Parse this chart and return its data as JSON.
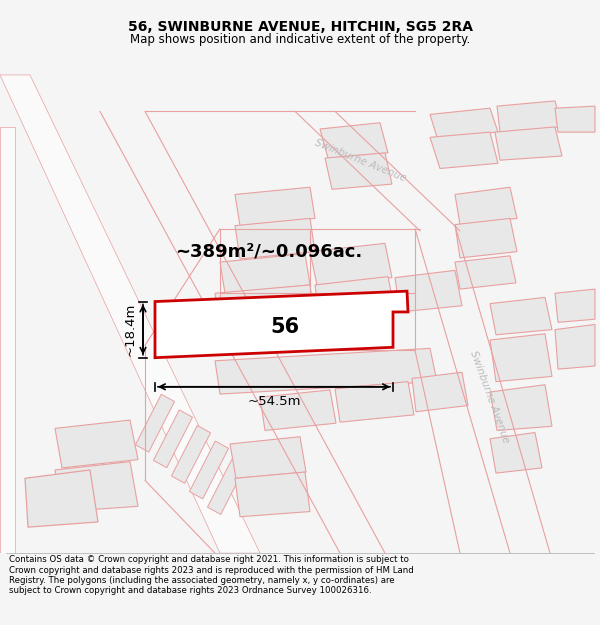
{
  "title_line1": "56, SWINBURNE AVENUE, HITCHIN, SG5 2RA",
  "title_line2": "Map shows position and indicative extent of the property.",
  "footer_text": "Contains OS data © Crown copyright and database right 2021. This information is subject to Crown copyright and database rights 2023 and is reproduced with the permission of HM Land Registry. The polygons (including the associated geometry, namely x, y co-ordinates) are subject to Crown copyright and database rights 2023 Ordnance Survey 100026316.",
  "area_label": "~389m²/~0.096ac.",
  "width_label": "~54.5m",
  "height_label": "~18.4m",
  "plot_number": "56",
  "bg_color": "#f5f5f5",
  "map_bg": "#ffffff",
  "plot_fill": "#ffffff",
  "plot_edge": "#cc0000",
  "road_edge": "#e8a0a0",
  "bldg_fill": "#e8e8e8",
  "bldg_edge": "#e8a0a0",
  "road_label_color": "#bbbbbb",
  "road_label": "Swinburne Avenue",
  "road_label2": "Swinburne Avenue"
}
